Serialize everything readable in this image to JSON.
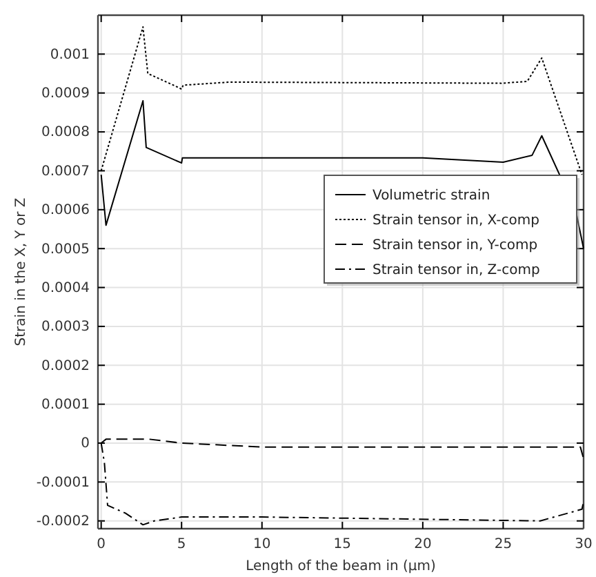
{
  "chart_data": {
    "type": "line",
    "xlabel": "Length of the beam in (µm)",
    "ylabel": "Strain in the X, Y or Z",
    "xlim": [
      -0.2,
      30
    ],
    "xticks": [
      0,
      5,
      10,
      15,
      20,
      25,
      30
    ],
    "ylim": [
      -0.00022,
      0.0011
    ],
    "yticks": [
      -0.0002,
      -0.0001,
      0,
      0.0001,
      0.0002,
      0.0003,
      0.0004,
      0.0005,
      0.0006,
      0.0007,
      0.0008,
      0.0009,
      0.001
    ],
    "grid": true,
    "legend": "right",
    "series": [
      {
        "name": "Volumetric strain",
        "color": "#000000",
        "line_style": "solid",
        "x": [
          0,
          0.3,
          2.6,
          2.8,
          5,
          5.05,
          10,
          20,
          25,
          26.8,
          27.4,
          29.5,
          30
        ],
        "values": [
          0.00069,
          0.00056,
          0.00088,
          0.00076,
          0.00072,
          0.000733,
          0.000733,
          0.000733,
          0.000722,
          0.00074,
          0.00079,
          0.0006,
          0.0005
        ]
      },
      {
        "name": "Strain tensor in, X-comp",
        "color": "#000000",
        "line_style": "dotted",
        "x": [
          0,
          2.6,
          2.9,
          4.5,
          5,
          5.1,
          8,
          25,
          26.5,
          27.4,
          29.9
        ],
        "values": [
          0.0007,
          0.00107,
          0.00095,
          0.00092,
          0.00091,
          0.00092,
          0.000928,
          0.000925,
          0.00093,
          0.00099,
          0.00069
        ]
      },
      {
        "name": "Strain tensor in, Y-comp",
        "color": "#000000",
        "line_style": "dashed",
        "x": [
          0,
          0.3,
          3,
          5,
          10,
          25,
          29.8,
          30
        ],
        "values": [
          0,
          1e-05,
          1e-05,
          0,
          -1e-05,
          -1e-05,
          -1e-05,
          -4e-05
        ]
      },
      {
        "name": "Strain tensor in, Z-comp",
        "color": "#000000",
        "line_style": "dashdot",
        "x": [
          0,
          0.2,
          0.4,
          1.5,
          2.6,
          3.3,
          5,
          10,
          27.3,
          29.9,
          30
        ],
        "values": [
          0,
          -5e-05,
          -0.00016,
          -0.00018,
          -0.00021,
          -0.0002,
          -0.00019,
          -0.00019,
          -0.0002,
          -0.00017,
          -0.00015
        ]
      }
    ]
  }
}
